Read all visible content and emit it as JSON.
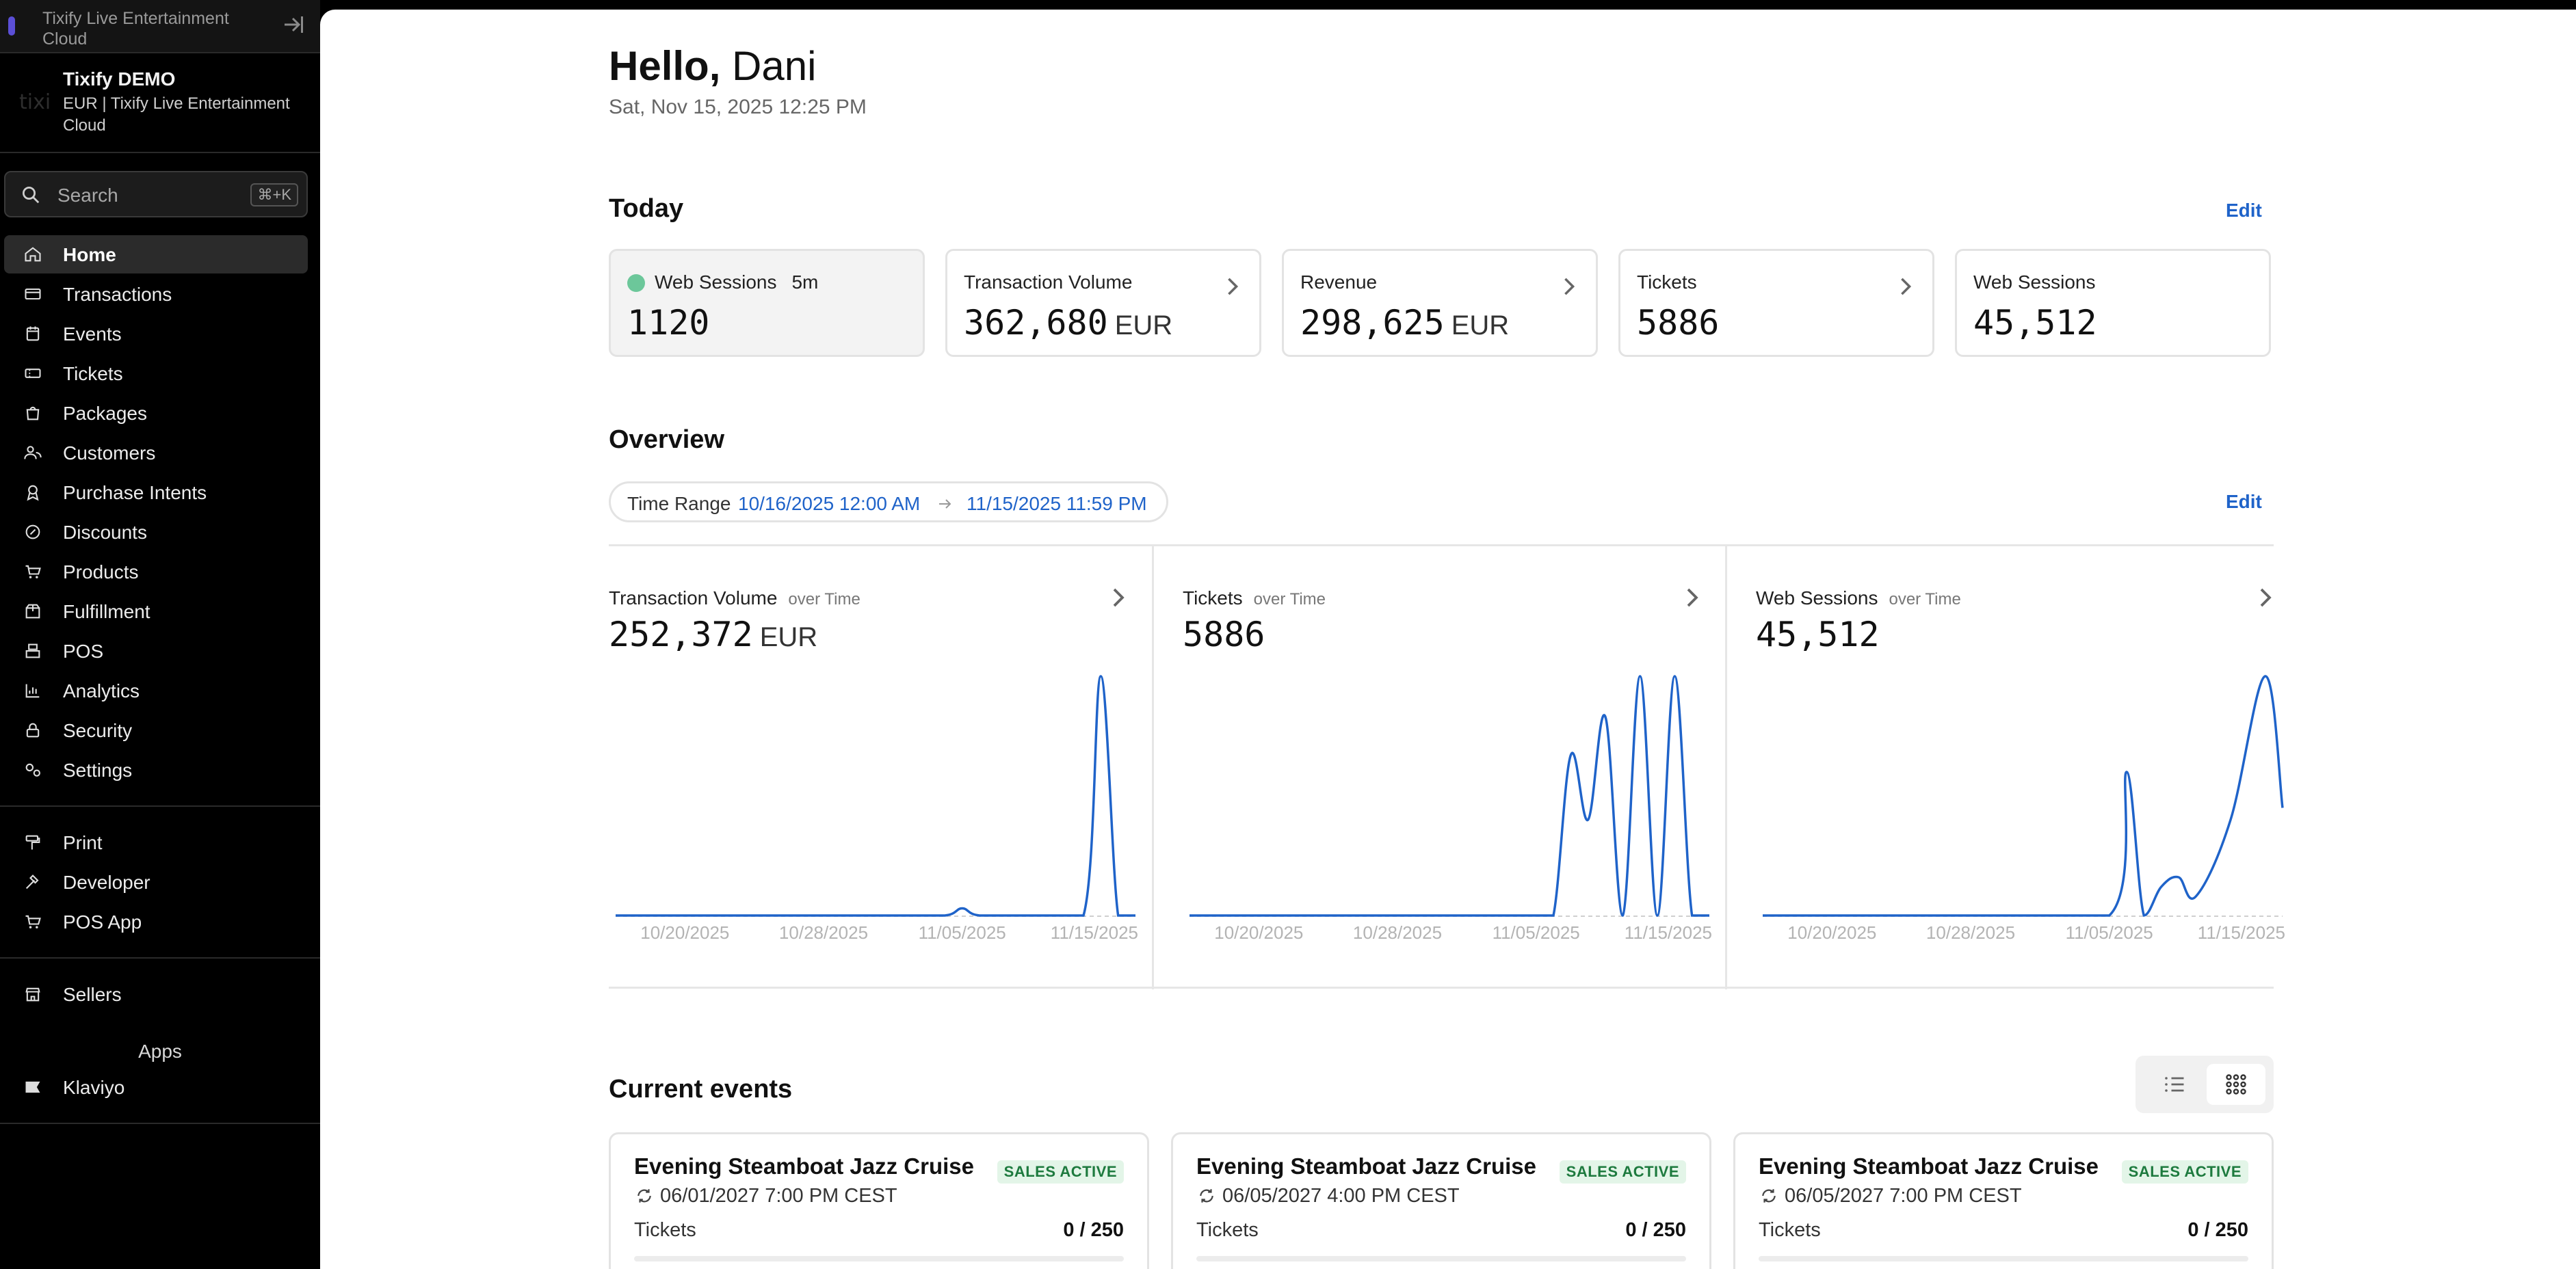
{
  "sidebar": {
    "org_switch": {
      "name": "Tixify Live Entertainment Cloud"
    },
    "account": {
      "logo": "tixi",
      "title": "Tixify DEMO",
      "subtitle": "EUR | Tixify Live Entertainment Cloud"
    },
    "search": {
      "label": "Search",
      "shortcut": "⌘+K"
    },
    "nav": [
      {
        "label": "Home",
        "icon": "home-icon",
        "active": true
      },
      {
        "label": "Transactions",
        "icon": "credit-card-icon"
      },
      {
        "label": "Events",
        "icon": "calendar-icon"
      },
      {
        "label": "Tickets",
        "icon": "ticket-icon"
      },
      {
        "label": "Packages",
        "icon": "package-icon"
      },
      {
        "label": "Customers",
        "icon": "users-icon"
      },
      {
        "label": "Purchase Intents",
        "icon": "badge-icon"
      },
      {
        "label": "Discounts",
        "icon": "discount-icon"
      },
      {
        "label": "Products",
        "icon": "cart-icon"
      },
      {
        "label": "Fulfillment",
        "icon": "box-icon"
      },
      {
        "label": "POS",
        "icon": "register-icon"
      },
      {
        "label": "Analytics",
        "icon": "chart-icon"
      },
      {
        "label": "Security",
        "icon": "lock-icon"
      },
      {
        "label": "Settings",
        "icon": "gears-icon"
      }
    ],
    "tools": [
      {
        "label": "Print",
        "icon": "paint-roller-icon"
      },
      {
        "label": "Developer",
        "icon": "hammer-icon"
      },
      {
        "label": "POS App",
        "icon": "cart-icon"
      }
    ],
    "sellers": {
      "label": "Sellers",
      "icon": "store-icon"
    },
    "apps_heading": "Apps",
    "apps": [
      {
        "label": "Klaviyo",
        "icon": "flag-icon"
      }
    ]
  },
  "header": {
    "greeting": "Hello,",
    "name": "Dani",
    "datetime": "Sat, Nov 15, 2025 12:25 PM"
  },
  "today": {
    "heading": "Today",
    "edit_label": "Edit",
    "stats": [
      {
        "title": "Web Sessions",
        "tag": "5m",
        "value": "1120",
        "unit": "",
        "live": true
      },
      {
        "title": "Transaction Volume",
        "value": "362,680",
        "unit": "EUR"
      },
      {
        "title": "Revenue",
        "value": "298,625",
        "unit": "EUR"
      },
      {
        "title": "Tickets",
        "value": "5886",
        "unit": ""
      },
      {
        "title": "Web Sessions",
        "value": "45,512",
        "unit": ""
      }
    ]
  },
  "overview": {
    "heading": "Overview",
    "edit_label": "Edit",
    "range_label": "Time Range",
    "range_from": "10/16/2025 12:00 AM",
    "range_to": "11/15/2025 11:59 PM"
  },
  "chart_data": [
    {
      "type": "line",
      "title": "Transaction Volume",
      "subtitle": "over Time",
      "total": "252,372",
      "unit": "EUR",
      "x_ticks": [
        "10/20/2025",
        "10/28/2025",
        "11/05/2025",
        "11/15/2025"
      ],
      "x": [
        "10/16/2025",
        "10/20/2025",
        "10/24/2025",
        "10/28/2025",
        "11/01/2025",
        "11/04/2025",
        "11/05/2025",
        "11/06/2025",
        "11/09/2025",
        "11/12/2025",
        "11/13/2025",
        "11/14/2025",
        "11/15/2025"
      ],
      "values": [
        0,
        0,
        0,
        0,
        0,
        0,
        3,
        0,
        0,
        0,
        100,
        0,
        0
      ],
      "y_max": 100,
      "color": "#1f63c9"
    },
    {
      "type": "line",
      "title": "Tickets",
      "subtitle": "over Time",
      "total": "5886",
      "unit": "",
      "x_ticks": [
        "10/20/2025",
        "10/28/2025",
        "11/05/2025",
        "11/15/2025"
      ],
      "x": [
        "10/16/2025",
        "10/20/2025",
        "10/28/2025",
        "11/05/2025",
        "11/06/2025",
        "11/07/2025",
        "11/08/2025",
        "11/09/2025",
        "11/10/2025",
        "11/11/2025",
        "11/12/2025",
        "11/13/2025",
        "11/14/2025",
        "11/15/2025"
      ],
      "values": [
        0,
        0,
        0,
        0,
        0,
        67,
        40,
        83,
        0,
        100,
        0,
        100,
        0,
        0
      ],
      "y_max": 100,
      "color": "#1f63c9"
    },
    {
      "type": "line",
      "title": "Web Sessions",
      "subtitle": "over Time",
      "total": "45,512",
      "unit": "",
      "x_ticks": [
        "10/20/2025",
        "10/28/2025",
        "11/05/2025",
        "11/15/2025"
      ],
      "x": [
        "10/16/2025",
        "10/20/2025",
        "10/28/2025",
        "11/05/2025",
        "11/06/2025",
        "11/07/2025",
        "11/08/2025",
        "11/09/2025",
        "11/10/2025",
        "11/12/2025",
        "11/14/2025",
        "11/15/2025"
      ],
      "values": [
        0,
        0,
        0,
        0,
        60,
        0,
        12,
        16,
        8,
        40,
        100,
        45
      ],
      "y_max": 100,
      "color": "#1f63c9"
    }
  ],
  "events": {
    "heading": "Current events",
    "cards": [
      {
        "title": "Evening Steamboat Jazz Cruise",
        "badge": "SALES ACTIVE",
        "date": "06/01/2027 7:00 PM CEST",
        "tickets_label": "Tickets",
        "tickets": "0 / 250"
      },
      {
        "title": "Evening Steamboat Jazz Cruise",
        "badge": "SALES ACTIVE",
        "date": "06/05/2027 4:00 PM CEST",
        "tickets_label": "Tickets",
        "tickets": "0 / 250"
      },
      {
        "title": "Evening Steamboat Jazz Cruise",
        "badge": "SALES ACTIVE",
        "date": "06/05/2027 7:00 PM CEST",
        "tickets_label": "Tickets",
        "tickets": "0 / 250"
      }
    ]
  },
  "colors": {
    "accent": "#1f63c9",
    "live": "#6cc79a",
    "badge_bg": "#e3f5e8",
    "badge_fg": "#1d7a3e"
  }
}
